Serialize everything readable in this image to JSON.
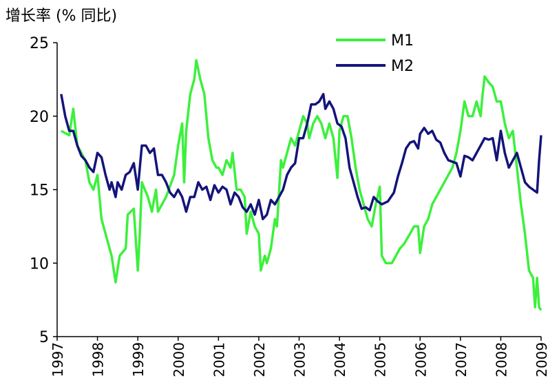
{
  "chart_data": {
    "type": "line",
    "ylabel": "增长率 (% 同比)",
    "xlim": [
      1997,
      2009
    ],
    "xticks": [
      1997,
      1998,
      1999,
      2000,
      2001,
      2002,
      2003,
      2004,
      2005,
      2006,
      2007,
      2008,
      2009
    ],
    "ylim": [
      5,
      25
    ],
    "yticks": [
      5,
      10,
      15,
      20,
      25
    ],
    "grid": false,
    "legend": "upper right",
    "series": [
      {
        "name": "M1",
        "color": "#3cf03c",
        "x": [
          1997.1,
          1997.3,
          1997.4,
          1997.5,
          1997.7,
          1997.8,
          1997.9,
          1998.0,
          1998.1,
          1998.2,
          1998.35,
          1998.45,
          1998.55,
          1998.7,
          1998.75,
          1998.9,
          1999.0,
          1999.05,
          1999.1,
          1999.25,
          1999.35,
          1999.45,
          1999.5,
          1999.7,
          1999.9,
          2000.0,
          2000.1,
          2000.15,
          2000.2,
          2000.3,
          2000.4,
          2000.45,
          2000.55,
          2000.65,
          2000.75,
          2000.85,
          2000.95,
          2001.0,
          2001.1,
          2001.2,
          2001.3,
          2001.35,
          2001.45,
          2001.55,
          2001.65,
          2001.7,
          2001.8,
          2001.9,
          2002.0,
          2002.05,
          2002.15,
          2002.2,
          2002.3,
          2002.4,
          2002.45,
          2002.55,
          2002.6,
          2002.7,
          2002.8,
          2002.9,
          2003.0,
          2003.1,
          2003.2,
          2003.25,
          2003.35,
          2003.45,
          2003.55,
          2003.65,
          2003.75,
          2003.85,
          2003.95,
          2004.0,
          2004.1,
          2004.2,
          2004.3,
          2004.4,
          2004.5,
          2004.6,
          2004.7,
          2004.8,
          2004.9,
          2005.0,
          2005.05,
          2005.15,
          2005.3,
          2005.4,
          2005.5,
          2005.6,
          2005.75,
          2005.85,
          2005.95,
          2006.0,
          2006.1,
          2006.2,
          2006.3,
          2006.4,
          2006.5,
          2006.6,
          2006.7,
          2006.8,
          2006.9,
          2007.0,
          2007.1,
          2007.2,
          2007.3,
          2007.4,
          2007.5,
          2007.55,
          2007.6,
          2007.7,
          2007.8,
          2007.9,
          2008.0,
          2008.1,
          2008.2,
          2008.3,
          2008.4,
          2008.5,
          2008.6,
          2008.7,
          2008.8,
          2008.85,
          2008.9,
          2008.95,
          2009.0
        ],
        "values": [
          19,
          18.7,
          20.5,
          18,
          17,
          15.5,
          15,
          16,
          13,
          12,
          10.5,
          8.7,
          10.5,
          11,
          13.3,
          13.7,
          9.5,
          12,
          15.5,
          14.5,
          13.5,
          15,
          13.5,
          14.5,
          16,
          18,
          19.5,
          15.5,
          19,
          21.5,
          22.5,
          23.8,
          22.5,
          21.5,
          18.5,
          17,
          16.5,
          16.5,
          16,
          17,
          16.5,
          17.5,
          15,
          15,
          14.5,
          12,
          13.5,
          12.5,
          12,
          9.5,
          10.5,
          10,
          11,
          13,
          12.5,
          17,
          16.5,
          17.5,
          18.5,
          18,
          19,
          20,
          19.5,
          18.5,
          19.5,
          20,
          19.5,
          18.5,
          19.5,
          18.5,
          15.8,
          19,
          20,
          20,
          18.5,
          16.5,
          15,
          14,
          13,
          12.5,
          14,
          15.2,
          10.5,
          10,
          10,
          10.5,
          11,
          11.3,
          12,
          12.5,
          12.5,
          10.7,
          12.5,
          13,
          14,
          14.5,
          15,
          15.5,
          16,
          16.5,
          17.5,
          19,
          21,
          20,
          20,
          21,
          20,
          21.5,
          22.7,
          22.3,
          22,
          21,
          21,
          19.5,
          18.5,
          19,
          16.5,
          14,
          12,
          9.5,
          9,
          7,
          9,
          7,
          6.8
        ]
      },
      {
        "name": "M2",
        "color": "#14147a",
        "x": [
          1997.1,
          1997.2,
          1997.3,
          1997.4,
          1997.5,
          1997.6,
          1997.7,
          1997.8,
          1997.9,
          1998.0,
          1998.1,
          1998.2,
          1998.3,
          1998.35,
          1998.45,
          1998.5,
          1998.6,
          1998.7,
          1998.8,
          1998.9,
          1999.0,
          1999.1,
          1999.2,
          1999.3,
          1999.4,
          1999.5,
          1999.6,
          1999.7,
          1999.8,
          1999.9,
          2000.0,
          2000.1,
          2000.2,
          2000.3,
          2000.4,
          2000.5,
          2000.6,
          2000.7,
          2000.8,
          2000.9,
          2001.0,
          2001.1,
          2001.2,
          2001.3,
          2001.4,
          2001.5,
          2001.6,
          2001.7,
          2001.8,
          2001.9,
          2002.0,
          2002.1,
          2002.2,
          2002.3,
          2002.4,
          2002.5,
          2002.6,
          2002.7,
          2002.8,
          2002.9,
          2003.0,
          2003.1,
          2003.2,
          2003.3,
          2003.4,
          2003.5,
          2003.6,
          2003.65,
          2003.75,
          2003.85,
          2003.95,
          2004.05,
          2004.15,
          2004.25,
          2004.35,
          2004.45,
          2004.55,
          2004.65,
          2004.75,
          2004.85,
          2004.95,
          2005.05,
          2005.2,
          2005.35,
          2005.45,
          2005.55,
          2005.65,
          2005.75,
          2005.85,
          2005.95,
          2006.0,
          2006.1,
          2006.2,
          2006.3,
          2006.4,
          2006.5,
          2006.6,
          2006.7,
          2006.8,
          2006.9,
          2007.0,
          2007.1,
          2007.2,
          2007.3,
          2007.4,
          2007.5,
          2007.6,
          2007.7,
          2007.8,
          2007.9,
          2008.0,
          2008.1,
          2008.2,
          2008.3,
          2008.4,
          2008.5,
          2008.6,
          2008.7,
          2008.8,
          2008.9,
          2008.95,
          2009.0
        ],
        "values": [
          21.5,
          20,
          19,
          19,
          18,
          17.3,
          17,
          16.5,
          16.2,
          17.5,
          17.2,
          16,
          15,
          15.5,
          14.5,
          15.5,
          15,
          16,
          16.2,
          16.8,
          15,
          18,
          18,
          17.5,
          17.8,
          16,
          16,
          15.5,
          14.8,
          14.5,
          15,
          14.5,
          13.5,
          14.5,
          14.5,
          15.5,
          15,
          15.2,
          14.3,
          15.3,
          14.8,
          15.2,
          15,
          14,
          14.8,
          14.5,
          13.8,
          13.5,
          14,
          13.3,
          14.3,
          13,
          13.3,
          14.3,
          14,
          14.5,
          15,
          16,
          16.5,
          16.8,
          18.5,
          18.5,
          19.5,
          20.8,
          20.8,
          21,
          21.5,
          20.5,
          21,
          20.5,
          19.5,
          19.3,
          18.5,
          16.5,
          15.5,
          14.5,
          13.7,
          13.8,
          13.6,
          14.5,
          14.2,
          14,
          14.2,
          14.8,
          15.9,
          16.8,
          17.8,
          18.2,
          18.3,
          17.8,
          18.8,
          19.2,
          18.8,
          19.0,
          18.4,
          18.2,
          17.5,
          17.0,
          16.9,
          16.8,
          15.9,
          17.3,
          17.2,
          17.0,
          17.5,
          18.0,
          18.5,
          18.4,
          18.5,
          17.0,
          19.0,
          17.5,
          16.5,
          17.0,
          17.5,
          16.5,
          15.5,
          15.2,
          15.0,
          14.8,
          17.0,
          18.7
        ]
      }
    ]
  }
}
